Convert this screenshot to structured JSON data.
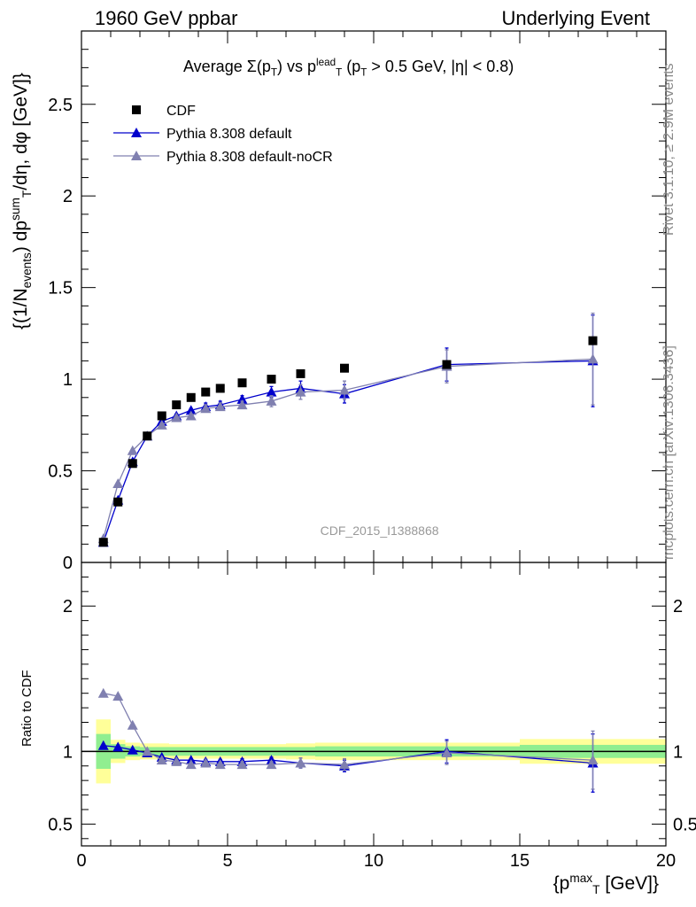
{
  "header": {
    "left": "1960 GeV ppbar",
    "right": "Underlying Event"
  },
  "side_labels": {
    "rivet": "Rivet 3.1.10, ≥ 2.9M events",
    "mcplots": "mcplots.cern.ch [arXiv:1306.3436]"
  },
  "chart_data": [
    {
      "type": "scatter",
      "title": "Average Σ(p_T) vs p_T^lead (p_T > 0.5 GeV, |η| < 0.8)",
      "title_parts": {
        "prefix": "Average ",
        "sigma": "Σ(p",
        "sub_T": "T",
        "mid": ") vs p",
        "sup_lead": "lead",
        "sub_T2": "T",
        "suffix": " (p",
        "sub_T3": "T",
        "cut": " > 0.5 GeV, |η| < 0.8)"
      },
      "ylabel": "{(1/N_events) dp_T^sum/dη, dφ [GeV]}",
      "ylabel_parts": {
        "a": "{(1/N",
        "sub_events": "events",
        "b": ") dp",
        "sup_sum": "sum",
        "sub_T": "T",
        "c": "/dη, dφ [GeV]}"
      },
      "xlim": [
        0,
        20
      ],
      "ylim": [
        0,
        2.9
      ],
      "yticks": [
        "0",
        "0.5",
        "1",
        "1.5",
        "2",
        "2.5"
      ],
      "xticks": [
        "0",
        "5",
        "10",
        "15",
        "20"
      ],
      "watermark": "CDF_2015_I1388868",
      "legend_position": "top-left",
      "series": [
        {
          "name": "CDF",
          "color": "#000000",
          "marker": "square",
          "x": [
            0.75,
            1.25,
            1.75,
            2.25,
            2.75,
            3.25,
            3.75,
            4.25,
            4.75,
            5.5,
            6.5,
            7.5,
            9.0,
            12.5,
            17.5
          ],
          "y": [
            0.11,
            0.33,
            0.54,
            0.69,
            0.8,
            0.86,
            0.9,
            0.93,
            0.95,
            0.98,
            1.0,
            1.03,
            1.06,
            1.08,
            1.21
          ]
        },
        {
          "name": "Pythia 8.308 default",
          "color": "#0000cc",
          "marker": "triangle",
          "x": [
            0.75,
            1.25,
            1.75,
            2.25,
            2.75,
            3.25,
            3.75,
            4.25,
            4.75,
            5.5,
            6.5,
            7.5,
            9.0,
            12.5,
            17.5
          ],
          "y": [
            0.11,
            0.34,
            0.55,
            0.69,
            0.77,
            0.8,
            0.83,
            0.85,
            0.86,
            0.89,
            0.93,
            0.95,
            0.92,
            1.08,
            1.1
          ],
          "err": [
            0,
            0,
            0,
            0,
            0.01,
            0.01,
            0.01,
            0.02,
            0.02,
            0.02,
            0.03,
            0.04,
            0.05,
            0.09,
            0.25
          ]
        },
        {
          "name": "Pythia 8.308 default-noCR",
          "color": "#8080b0",
          "marker": "triangle",
          "x": [
            0.75,
            1.25,
            1.75,
            2.25,
            2.75,
            3.25,
            3.75,
            4.25,
            4.75,
            5.5,
            6.5,
            7.5,
            9.0,
            12.5,
            17.5
          ],
          "y": [
            0.13,
            0.43,
            0.61,
            0.69,
            0.75,
            0.79,
            0.8,
            0.84,
            0.85,
            0.86,
            0.88,
            0.93,
            0.94,
            1.07,
            1.11
          ],
          "err": [
            0,
            0,
            0,
            0,
            0.01,
            0.01,
            0.01,
            0.02,
            0.02,
            0.02,
            0.03,
            0.04,
            0.05,
            0.09,
            0.25
          ]
        }
      ]
    },
    {
      "type": "scatter",
      "ylabel": "Ratio to CDF",
      "xlabel": "{p_T^max [GeV]}",
      "xlabel_parts": {
        "a": "{p",
        "sup_max": "max",
        "sub_T": "T",
        "b": " [GeV]}"
      },
      "xlim": [
        0,
        20
      ],
      "ylim": [
        0.35,
        2.3
      ],
      "yticks": [
        "0.5",
        "1",
        "2"
      ],
      "xticks": [
        "0",
        "5",
        "10",
        "15",
        "20"
      ],
      "bands": {
        "x_edges": [
          0.5,
          1.0,
          1.5,
          2.0,
          2.5,
          3.0,
          3.5,
          4.0,
          4.5,
          5.0,
          6.0,
          7.0,
          8.0,
          10.0,
          15.0,
          20.0
        ],
        "stat_half_width": [
          0.12,
          0.05,
          0.035,
          0.03,
          0.03,
          0.03,
          0.03,
          0.03,
          0.03,
          0.03,
          0.03,
          0.03,
          0.035,
          0.035,
          0.045
        ],
        "total_half_width": [
          0.22,
          0.08,
          0.06,
          0.055,
          0.055,
          0.05,
          0.05,
          0.05,
          0.05,
          0.05,
          0.05,
          0.055,
          0.06,
          0.06,
          0.085
        ],
        "stat_color": "#90ee90",
        "total_color": "#ffff99"
      },
      "series": [
        {
          "name": "Pythia 8.308 default",
          "color": "#0000cc",
          "marker": "triangle",
          "x": [
            0.75,
            1.25,
            1.75,
            2.25,
            2.75,
            3.25,
            3.75,
            4.25,
            4.75,
            5.5,
            6.5,
            7.5,
            9.0,
            12.5,
            17.5
          ],
          "y": [
            1.04,
            1.03,
            1.01,
            0.99,
            0.96,
            0.94,
            0.94,
            0.93,
            0.93,
            0.93,
            0.94,
            0.92,
            0.9,
            1.0,
            0.92
          ],
          "err": [
            0,
            0,
            0,
            0,
            0.01,
            0.01,
            0.01,
            0.015,
            0.015,
            0.02,
            0.02,
            0.035,
            0.04,
            0.08,
            0.2
          ]
        },
        {
          "name": "Pythia 8.308 default-noCR",
          "color": "#8080b0",
          "marker": "triangle",
          "x": [
            0.75,
            1.25,
            1.75,
            2.25,
            2.75,
            3.25,
            3.75,
            4.25,
            4.75,
            5.5,
            6.5,
            7.5,
            9.0,
            12.5,
            17.5
          ],
          "y": [
            1.4,
            1.38,
            1.18,
            1.0,
            0.94,
            0.93,
            0.91,
            0.92,
            0.91,
            0.91,
            0.91,
            0.92,
            0.91,
            0.99,
            0.94
          ],
          "err": [
            0,
            0,
            0,
            0,
            0.01,
            0.01,
            0.01,
            0.015,
            0.015,
            0.02,
            0.02,
            0.035,
            0.04,
            0.08,
            0.2
          ]
        }
      ]
    }
  ]
}
